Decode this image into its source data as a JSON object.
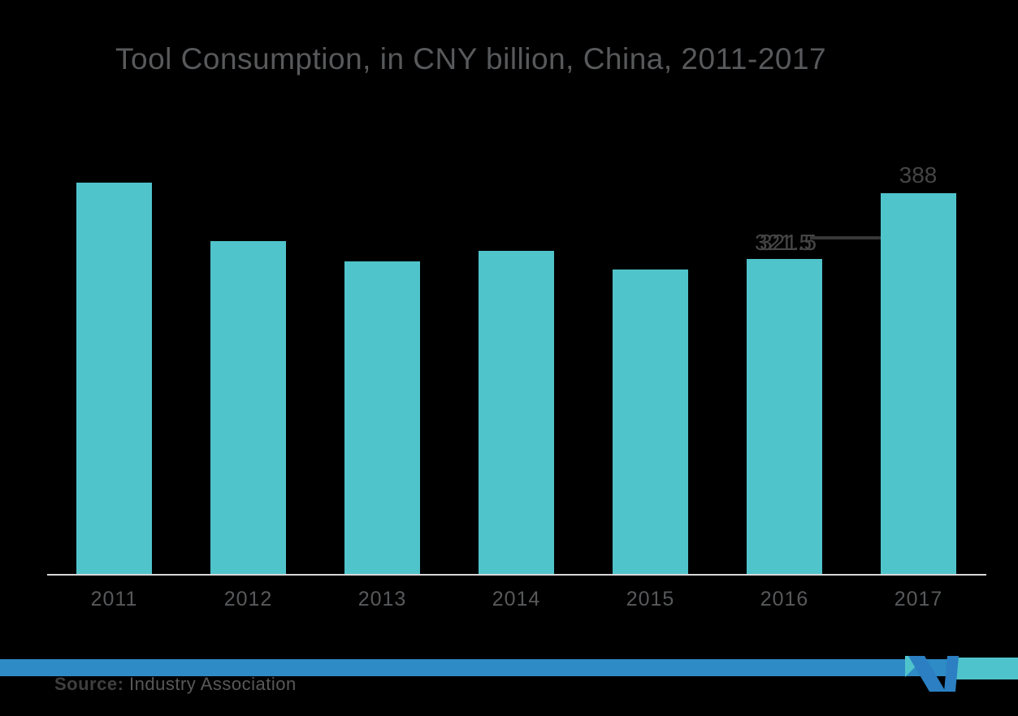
{
  "title": "Tool Consumption, in CNY billion, China, 2011-2017",
  "chart_data": {
    "type": "bar",
    "title": "Tool Consumption, in CNY billion, China, 2011-2017",
    "categories": [
      "2011",
      "2012",
      "2013",
      "2014",
      "2015",
      "2016",
      "2017"
    ],
    "values": [
      399,
      339,
      319,
      329.5,
      310,
      321.5,
      388
    ],
    "xlabel": "",
    "ylabel": "",
    "ylim": [
      0,
      450
    ],
    "grid": false,
    "legend": false,
    "bar_color": "#50C4CB",
    "data_labels": [
      {
        "category": "2016",
        "text": "321.5"
      },
      {
        "category": "2017",
        "text": "388"
      }
    ]
  },
  "footer": {
    "source_label": "Source:",
    "source_text": "Industry Association",
    "band_blue_color": "#2E8BC5",
    "band_teal_color": "#4FC3CB",
    "logo_blue_color": "#2B7FC2",
    "logo_teal_color": "#4FC3CB"
  }
}
